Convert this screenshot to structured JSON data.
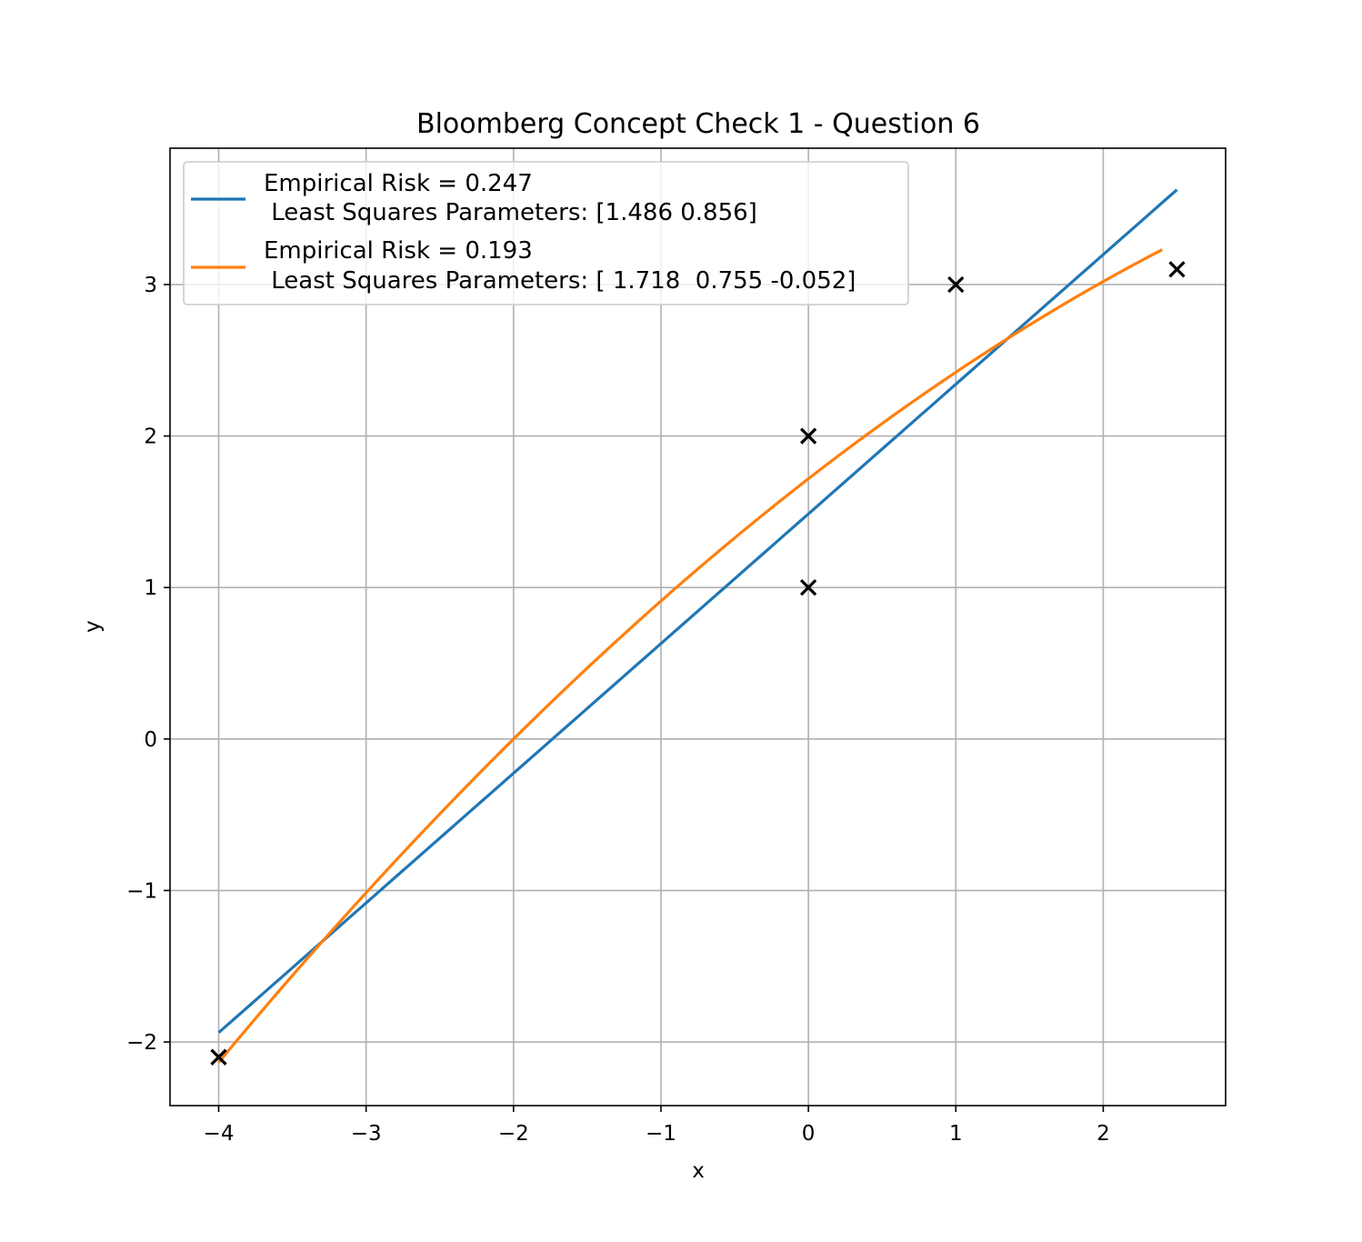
{
  "chart_data": {
    "type": "line",
    "title": "Bloomberg Concept Check 1 - Question 6",
    "xlabel": "x",
    "ylabel": "y",
    "xlim": [
      -4.33,
      2.83
    ],
    "ylim": [
      -2.42,
      3.9
    ],
    "grid": true,
    "legend_position": "top-left",
    "x_ticks": [
      -4,
      -3,
      -2,
      -1,
      0,
      1,
      2
    ],
    "x_tick_labels": [
      "−4",
      "−3",
      "−2",
      "−1",
      "0",
      "1",
      "2"
    ],
    "y_ticks": [
      -2,
      -1,
      0,
      1,
      2,
      3
    ],
    "y_tick_labels": [
      "−2",
      "−1",
      "0",
      "1",
      "2",
      "3"
    ],
    "series": [
      {
        "name": "Empirical Risk = 0.247\n Least Squares Parameters: [1.486 0.856]",
        "legend_lines": [
          "Empirical Risk = 0.247",
          " Least Squares Parameters: [1.486 0.856]"
        ],
        "kind": "line",
        "color": "#1f77b4",
        "coefficients": [
          1.486,
          0.856
        ],
        "x_range": [
          -4,
          2.5
        ]
      },
      {
        "name": "Empirical Risk = 0.193\n Least Squares Parameters: [ 1.718  0.755 -0.052]",
        "legend_lines": [
          "Empirical Risk = 0.193",
          " Least Squares Parameters: [ 1.718  0.755 -0.052]"
        ],
        "kind": "line",
        "color": "#ff7f0e",
        "coefficients": [
          1.718,
          0.755,
          -0.052
        ],
        "x_range": [
          -4,
          2.4
        ]
      }
    ],
    "points": {
      "marker": "x",
      "color": "#000000",
      "x": [
        -4,
        0,
        0,
        1,
        2.5
      ],
      "y": [
        -2.1,
        1,
        2,
        3,
        3.1
      ]
    }
  }
}
